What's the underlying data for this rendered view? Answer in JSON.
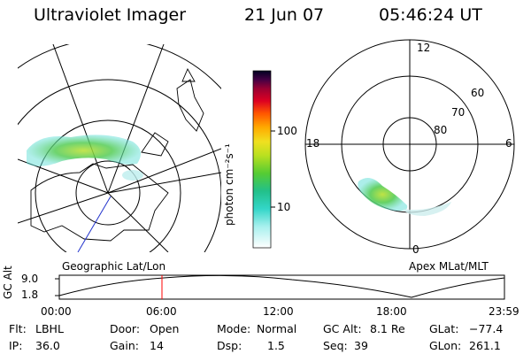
{
  "header": {
    "title": "Ultraviolet Imager",
    "date": "21 Jun 07",
    "time": "05:46:24 UT"
  },
  "left_panel": {
    "projection_label": "Geographic Lat/Lon"
  },
  "colorbar": {
    "unit_label": "photon cm⁻²s⁻¹",
    "ticks": [
      "100",
      "10"
    ]
  },
  "right_panel": {
    "projection_label": "Apex MLat/MLT",
    "mlt_labels": {
      "top": "12",
      "left": "18",
      "right": "6",
      "bottom": "0"
    },
    "lat_labels": [
      "60",
      "70",
      "80"
    ]
  },
  "orbit_plot": {
    "ylabel": "GC Alt",
    "y_ticks": [
      "9.0",
      "1.8"
    ],
    "x_ticks": [
      "00:00",
      "06:00",
      "12:00",
      "18:00",
      "23:59"
    ],
    "marker_color": "#ff0000"
  },
  "info": {
    "flt_label": "Flt:",
    "flt_value": "LBHL",
    "ip_label": "IP:",
    "ip_value": "36.0",
    "door_label": "Door:",
    "door_value": "Open",
    "gain_label": "Gain:",
    "gain_value": "14",
    "mode_label": "Mode:",
    "mode_value": "Normal",
    "dsp_label": "Dsp:",
    "dsp_value": "1.5",
    "gcalt_label": "GC Alt:",
    "gcalt_value": "8.1 Re",
    "seq_label": "Seq:",
    "seq_value": "39",
    "glat_label": "GLat:",
    "glat_value": "−77.4",
    "glon_label": "GLon:",
    "glon_value": "261.1"
  }
}
